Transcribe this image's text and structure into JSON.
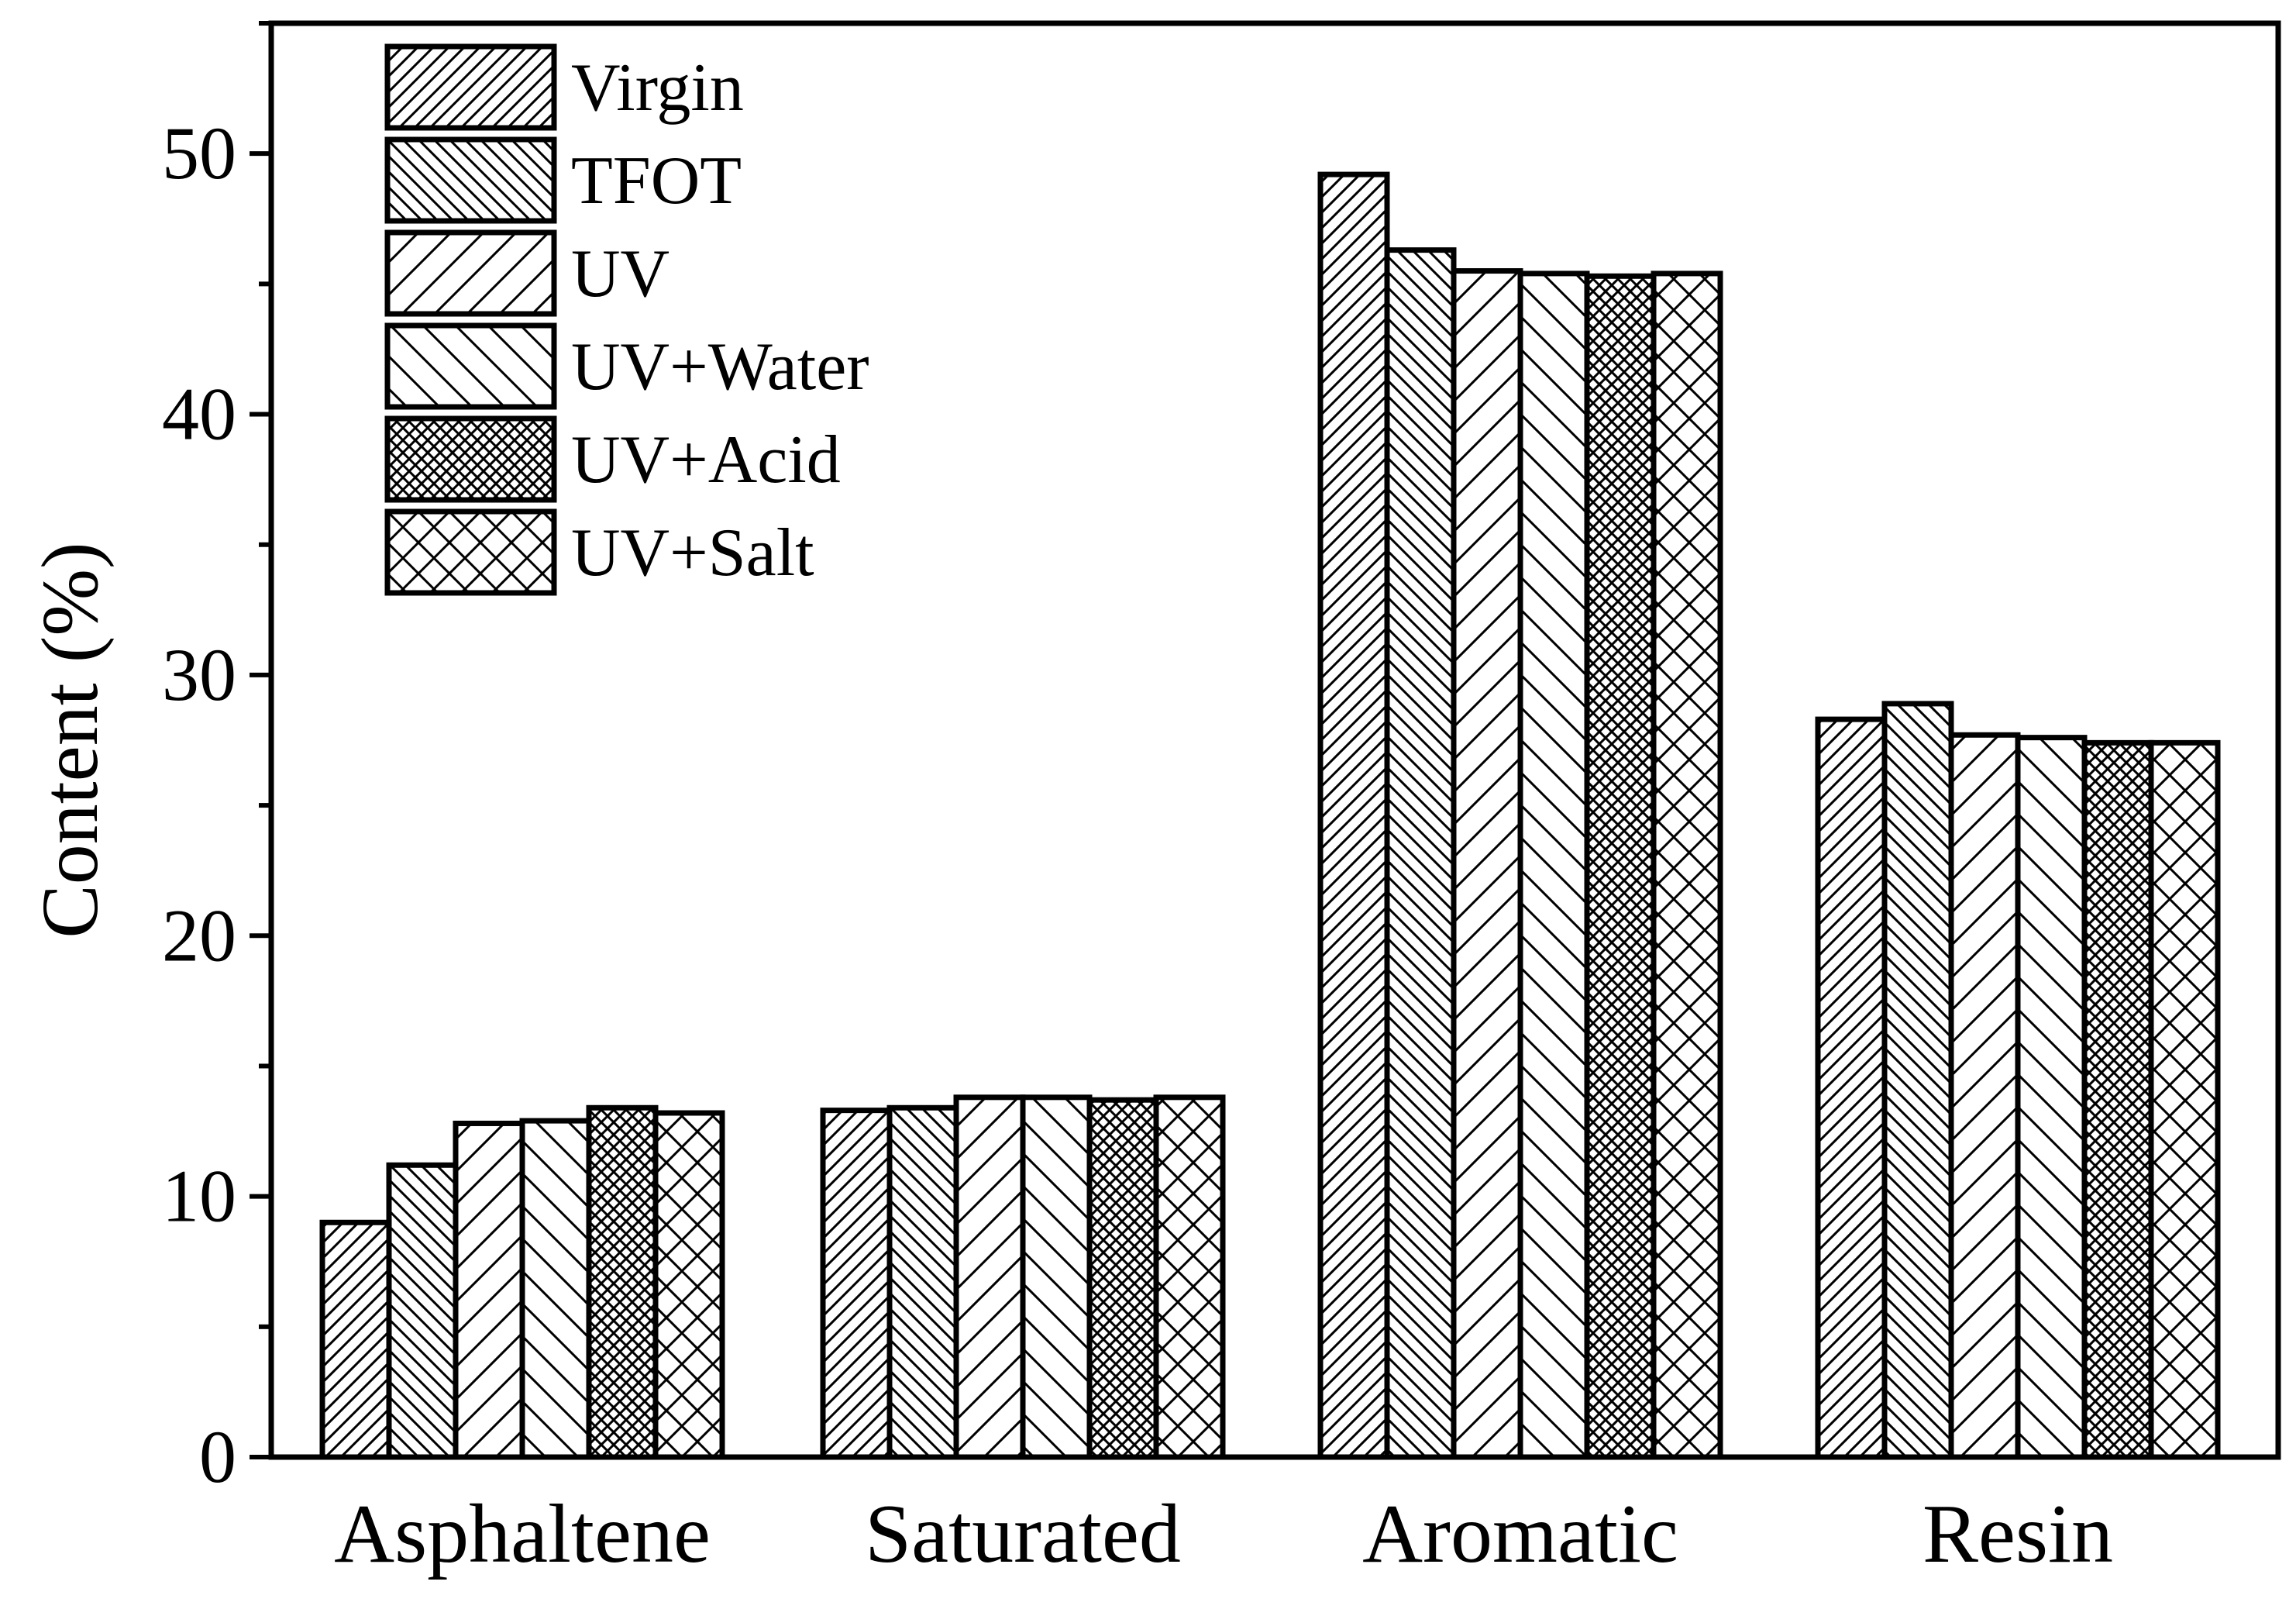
{
  "chart_data": {
    "type": "bar",
    "title": "",
    "xlabel": "",
    "ylabel": "Content (%)",
    "ylim": [
      0,
      55
    ],
    "yticks": [
      "0",
      "10",
      "20",
      "30",
      "40",
      "50"
    ],
    "categories": [
      "Asphaltene",
      "Saturated",
      "Aromatic",
      "Resin"
    ],
    "legend_position": "top-left",
    "series": [
      {
        "name": "Virgin",
        "pattern": "hatch-fine-forward",
        "values": [
          9.0,
          13.3,
          49.2,
          28.3
        ]
      },
      {
        "name": "TFOT",
        "pattern": "hatch-fine-back",
        "values": [
          11.2,
          13.4,
          46.3,
          28.9
        ]
      },
      {
        "name": "UV",
        "pattern": "hatch-wide-forward",
        "values": [
          12.8,
          13.8,
          45.5,
          27.7
        ]
      },
      {
        "name": "UV+Water",
        "pattern": "hatch-wide-back",
        "values": [
          12.9,
          13.8,
          45.4,
          27.6
        ]
      },
      {
        "name": "UV+Acid",
        "pattern": "crosshatch-fine",
        "values": [
          13.4,
          13.7,
          45.3,
          27.4
        ]
      },
      {
        "name": "UV+Salt",
        "pattern": "crosshatch-wide",
        "values": [
          13.2,
          13.8,
          45.4,
          27.4
        ]
      }
    ]
  }
}
